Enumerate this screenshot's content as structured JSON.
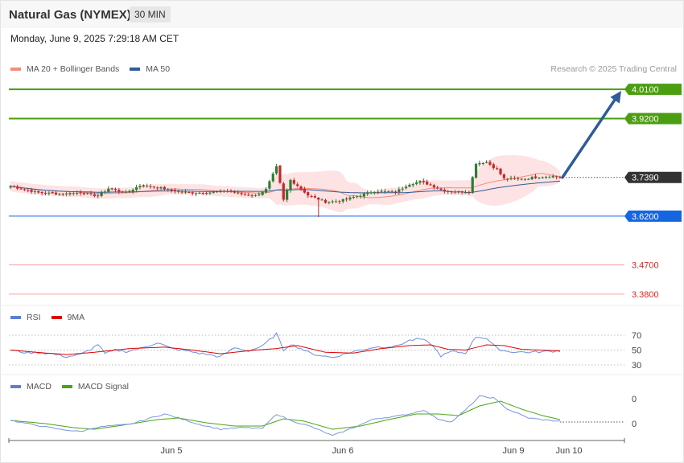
{
  "header": {
    "title": "Natural Gas (NYMEX)",
    "interval": "30 MIN",
    "datetime": "Monday, June 9, 2025 7:29:18 AM CET"
  },
  "legend_price": [
    {
      "label": "MA 20 + Bollinger Bands",
      "color": "#f28b82"
    },
    {
      "label": "MA 50",
      "color": "#2f5b9a"
    }
  ],
  "credit": "Research © 2025 Trading Central",
  "legend_rsi": [
    {
      "label": "RSI",
      "color": "#5b7fd6"
    },
    {
      "label": "9MA",
      "color": "#e00000"
    }
  ],
  "legend_macd": [
    {
      "label": "MACD",
      "color": "#5b7fd6"
    },
    {
      "label": "MACD Signal",
      "color": "#4aa414"
    }
  ],
  "colors": {
    "up": "#2e7d32",
    "down": "#c62828",
    "bollinger_fill": "#fde3e3",
    "ma20": "#f28b82",
    "ma50": "#2f5b9a",
    "target": "#4a9e10",
    "pivot": "#1565e0",
    "support": "#f4a3a3",
    "current": "#333333",
    "arrow": "#2f5b9a"
  },
  "chart_data": [
    {
      "type": "candlestick",
      "title": "Natural Gas (NYMEX)",
      "xticks": [
        "Jun 5",
        "Jun 6",
        "Jun 9",
        "Jun 10"
      ],
      "ylim": [
        3.35,
        4.05
      ],
      "levels": [
        {
          "value": "4.0100",
          "kind": "target"
        },
        {
          "value": "3.9200",
          "kind": "target"
        },
        {
          "value": "3.7390",
          "kind": "current"
        },
        {
          "value": "3.6200",
          "kind": "pivot"
        },
        {
          "value": "3.4700",
          "kind": "support"
        },
        {
          "value": "3.3800",
          "kind": "support"
        }
      ],
      "projection": {
        "from": 3.739,
        "to": 4.01
      },
      "close_anchors": [
        [
          0,
          3.712
        ],
        [
          8,
          3.692
        ],
        [
          15,
          3.688
        ],
        [
          20,
          3.692
        ],
        [
          25,
          3.682
        ],
        [
          28,
          3.705
        ],
        [
          33,
          3.692
        ],
        [
          37,
          3.714
        ],
        [
          42,
          3.709
        ],
        [
          46,
          3.699
        ],
        [
          51,
          3.692
        ],
        [
          56,
          3.692
        ],
        [
          62,
          3.697
        ],
        [
          66,
          3.688
        ],
        [
          70,
          3.683
        ],
        [
          73,
          3.702
        ],
        [
          76,
          3.771
        ],
        [
          78,
          3.669
        ],
        [
          80,
          3.731
        ],
        [
          82,
          3.714
        ],
        [
          85,
          3.684
        ],
        [
          90,
          3.664
        ],
        [
          94,
          3.666
        ],
        [
          98,
          3.678
        ],
        [
          104,
          3.697
        ],
        [
          110,
          3.694
        ],
        [
          114,
          3.719
        ],
        [
          117,
          3.726
        ],
        [
          120,
          3.716
        ],
        [
          123,
          3.701
        ],
        [
          127,
          3.694
        ],
        [
          131,
          3.695
        ],
        [
          133,
          3.783
        ],
        [
          136,
          3.786
        ],
        [
          139,
          3.763
        ],
        [
          141,
          3.735
        ],
        [
          147,
          3.735
        ],
        [
          151,
          3.741
        ],
        [
          155,
          3.743
        ],
        [
          157,
          3.739
        ]
      ]
    },
    {
      "type": "line",
      "name": "RSI",
      "yticks": [
        70,
        50,
        30
      ],
      "ylim": [
        30,
        70
      ],
      "rsi_anchors": [
        [
          0,
          50
        ],
        [
          5,
          46
        ],
        [
          8,
          47
        ],
        [
          12,
          45
        ],
        [
          16,
          41
        ],
        [
          20,
          44
        ],
        [
          23,
          51
        ],
        [
          25,
          58
        ],
        [
          27,
          45
        ],
        [
          30,
          50
        ],
        [
          33,
          48
        ],
        [
          37,
          52
        ],
        [
          42,
          60
        ],
        [
          46,
          52
        ],
        [
          50,
          49
        ],
        [
          55,
          45
        ],
        [
          60,
          41
        ],
        [
          64,
          53
        ],
        [
          68,
          49
        ],
        [
          72,
          55
        ],
        [
          76,
          72
        ],
        [
          78,
          50
        ],
        [
          80,
          58
        ],
        [
          83,
          52
        ],
        [
          86,
          45
        ],
        [
          92,
          40
        ],
        [
          98,
          48
        ],
        [
          104,
          54
        ],
        [
          110,
          55
        ],
        [
          114,
          63
        ],
        [
          117,
          65
        ],
        [
          120,
          59
        ],
        [
          123,
          42
        ],
        [
          126,
          48
        ],
        [
          130,
          46
        ],
        [
          133,
          68
        ],
        [
          136,
          66
        ],
        [
          139,
          52
        ],
        [
          142,
          48
        ],
        [
          148,
          47
        ],
        [
          153,
          48
        ],
        [
          157,
          49
        ]
      ],
      "ma9_anchors": [
        [
          0,
          50
        ],
        [
          10,
          46
        ],
        [
          16,
          44
        ],
        [
          24,
          47
        ],
        [
          34,
          52
        ],
        [
          44,
          54
        ],
        [
          52,
          50
        ],
        [
          60,
          45
        ],
        [
          70,
          50
        ],
        [
          76,
          52
        ],
        [
          82,
          56
        ],
        [
          90,
          47
        ],
        [
          98,
          46
        ],
        [
          106,
          52
        ],
        [
          114,
          56
        ],
        [
          120,
          57
        ],
        [
          125,
          51
        ],
        [
          130,
          50
        ],
        [
          136,
          57
        ],
        [
          141,
          56
        ],
        [
          146,
          51
        ],
        [
          157,
          49
        ]
      ]
    },
    {
      "type": "line",
      "name": "MACD",
      "yticks": [
        0,
        0
      ],
      "macd_anchors": [
        [
          0,
          0.2
        ],
        [
          6,
          -0.3
        ],
        [
          14,
          -0.9
        ],
        [
          20,
          -1.2
        ],
        [
          24,
          -0.7
        ],
        [
          28,
          -0.5
        ],
        [
          34,
          -0.3
        ],
        [
          40,
          0.5
        ],
        [
          44,
          1.0
        ],
        [
          48,
          0.5
        ],
        [
          54,
          -0.3
        ],
        [
          60,
          -0.9
        ],
        [
          66,
          -0.7
        ],
        [
          72,
          -0.8
        ],
        [
          76,
          1.0
        ],
        [
          80,
          0.2
        ],
        [
          86,
          -0.6
        ],
        [
          92,
          -1.7
        ],
        [
          98,
          -0.7
        ],
        [
          104,
          0.4
        ],
        [
          110,
          0.7
        ],
        [
          114,
          1.0
        ],
        [
          118,
          1.5
        ],
        [
          122,
          0.4
        ],
        [
          126,
          0.0
        ],
        [
          130,
          1.5
        ],
        [
          134,
          3.2
        ],
        [
          138,
          3.0
        ],
        [
          142,
          1.6
        ],
        [
          148,
          0.5
        ],
        [
          154,
          0.2
        ],
        [
          157,
          0.1
        ]
      ],
      "signal_anchors": [
        [
          0,
          0.2
        ],
        [
          10,
          -0.2
        ],
        [
          18,
          -0.7
        ],
        [
          24,
          -0.9
        ],
        [
          32,
          -0.4
        ],
        [
          42,
          0.3
        ],
        [
          48,
          0.5
        ],
        [
          56,
          -0.1
        ],
        [
          64,
          -0.5
        ],
        [
          72,
          -0.5
        ],
        [
          78,
          0.4
        ],
        [
          84,
          0.1
        ],
        [
          92,
          -0.9
        ],
        [
          100,
          -0.5
        ],
        [
          108,
          0.3
        ],
        [
          116,
          1.0
        ],
        [
          122,
          1.0
        ],
        [
          128,
          0.8
        ],
        [
          134,
          2.0
        ],
        [
          140,
          2.6
        ],
        [
          146,
          1.6
        ],
        [
          152,
          0.8
        ],
        [
          157,
          0.3
        ]
      ]
    }
  ]
}
